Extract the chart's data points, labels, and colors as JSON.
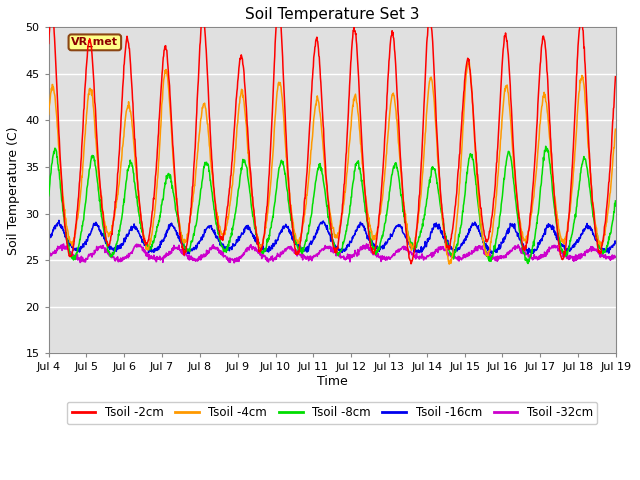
{
  "title": "Soil Temperature Set 3",
  "xlabel": "Time",
  "ylabel": "Soil Temperature (C)",
  "ylim": [
    15,
    50
  ],
  "yticks": [
    15,
    20,
    25,
    30,
    35,
    40,
    45,
    50
  ],
  "x_tick_days": [
    4,
    5,
    6,
    7,
    8,
    9,
    10,
    11,
    12,
    13,
    14,
    15,
    16,
    17,
    18,
    19
  ],
  "series_colors": {
    "Tsoil -2cm": "#ff0000",
    "Tsoil -4cm": "#ff9900",
    "Tsoil -8cm": "#00dd00",
    "Tsoil -16cm": "#0000ee",
    "Tsoil -32cm": "#cc00cc"
  },
  "annotation_label": "VR_met",
  "background_color": "#ffffff",
  "plot_bg_color": "#e0e0e0",
  "grid_color": "#ffffff"
}
